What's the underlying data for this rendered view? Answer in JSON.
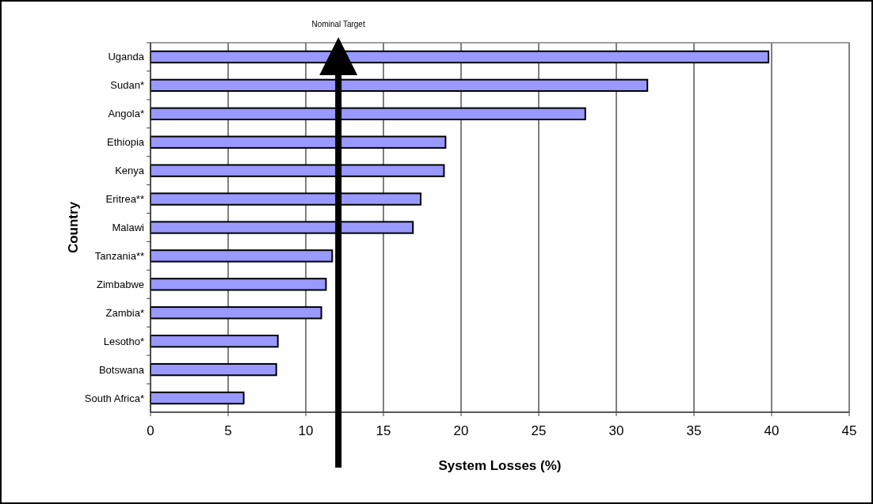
{
  "chart_data": {
    "type": "bar",
    "orientation": "horizontal",
    "xlabel": "System Losses (%)",
    "ylabel": "Country",
    "categories": [
      "Uganda",
      "Sudan*",
      "Angola*",
      "Ethiopia",
      "Kenya",
      "Eritrea**",
      "Malawi",
      "Tanzania**",
      "Zimbabwe",
      "Zambia*",
      "Lesotho*",
      "Botswana",
      "South Africa*"
    ],
    "values": [
      39.8,
      32.0,
      28.0,
      19.0,
      18.9,
      17.4,
      16.9,
      11.7,
      11.3,
      11.0,
      8.2,
      8.1,
      6.0
    ],
    "color": "#9999ff",
    "xlim": [
      0,
      45
    ],
    "xticks": [
      0,
      5,
      10,
      15,
      20,
      25,
      30,
      35,
      40,
      45
    ],
    "grid": "x",
    "ref_lines": [
      {
        "axis": "x",
        "value": 12.1,
        "label": "Nominal Target",
        "color": "#000000"
      }
    ]
  }
}
